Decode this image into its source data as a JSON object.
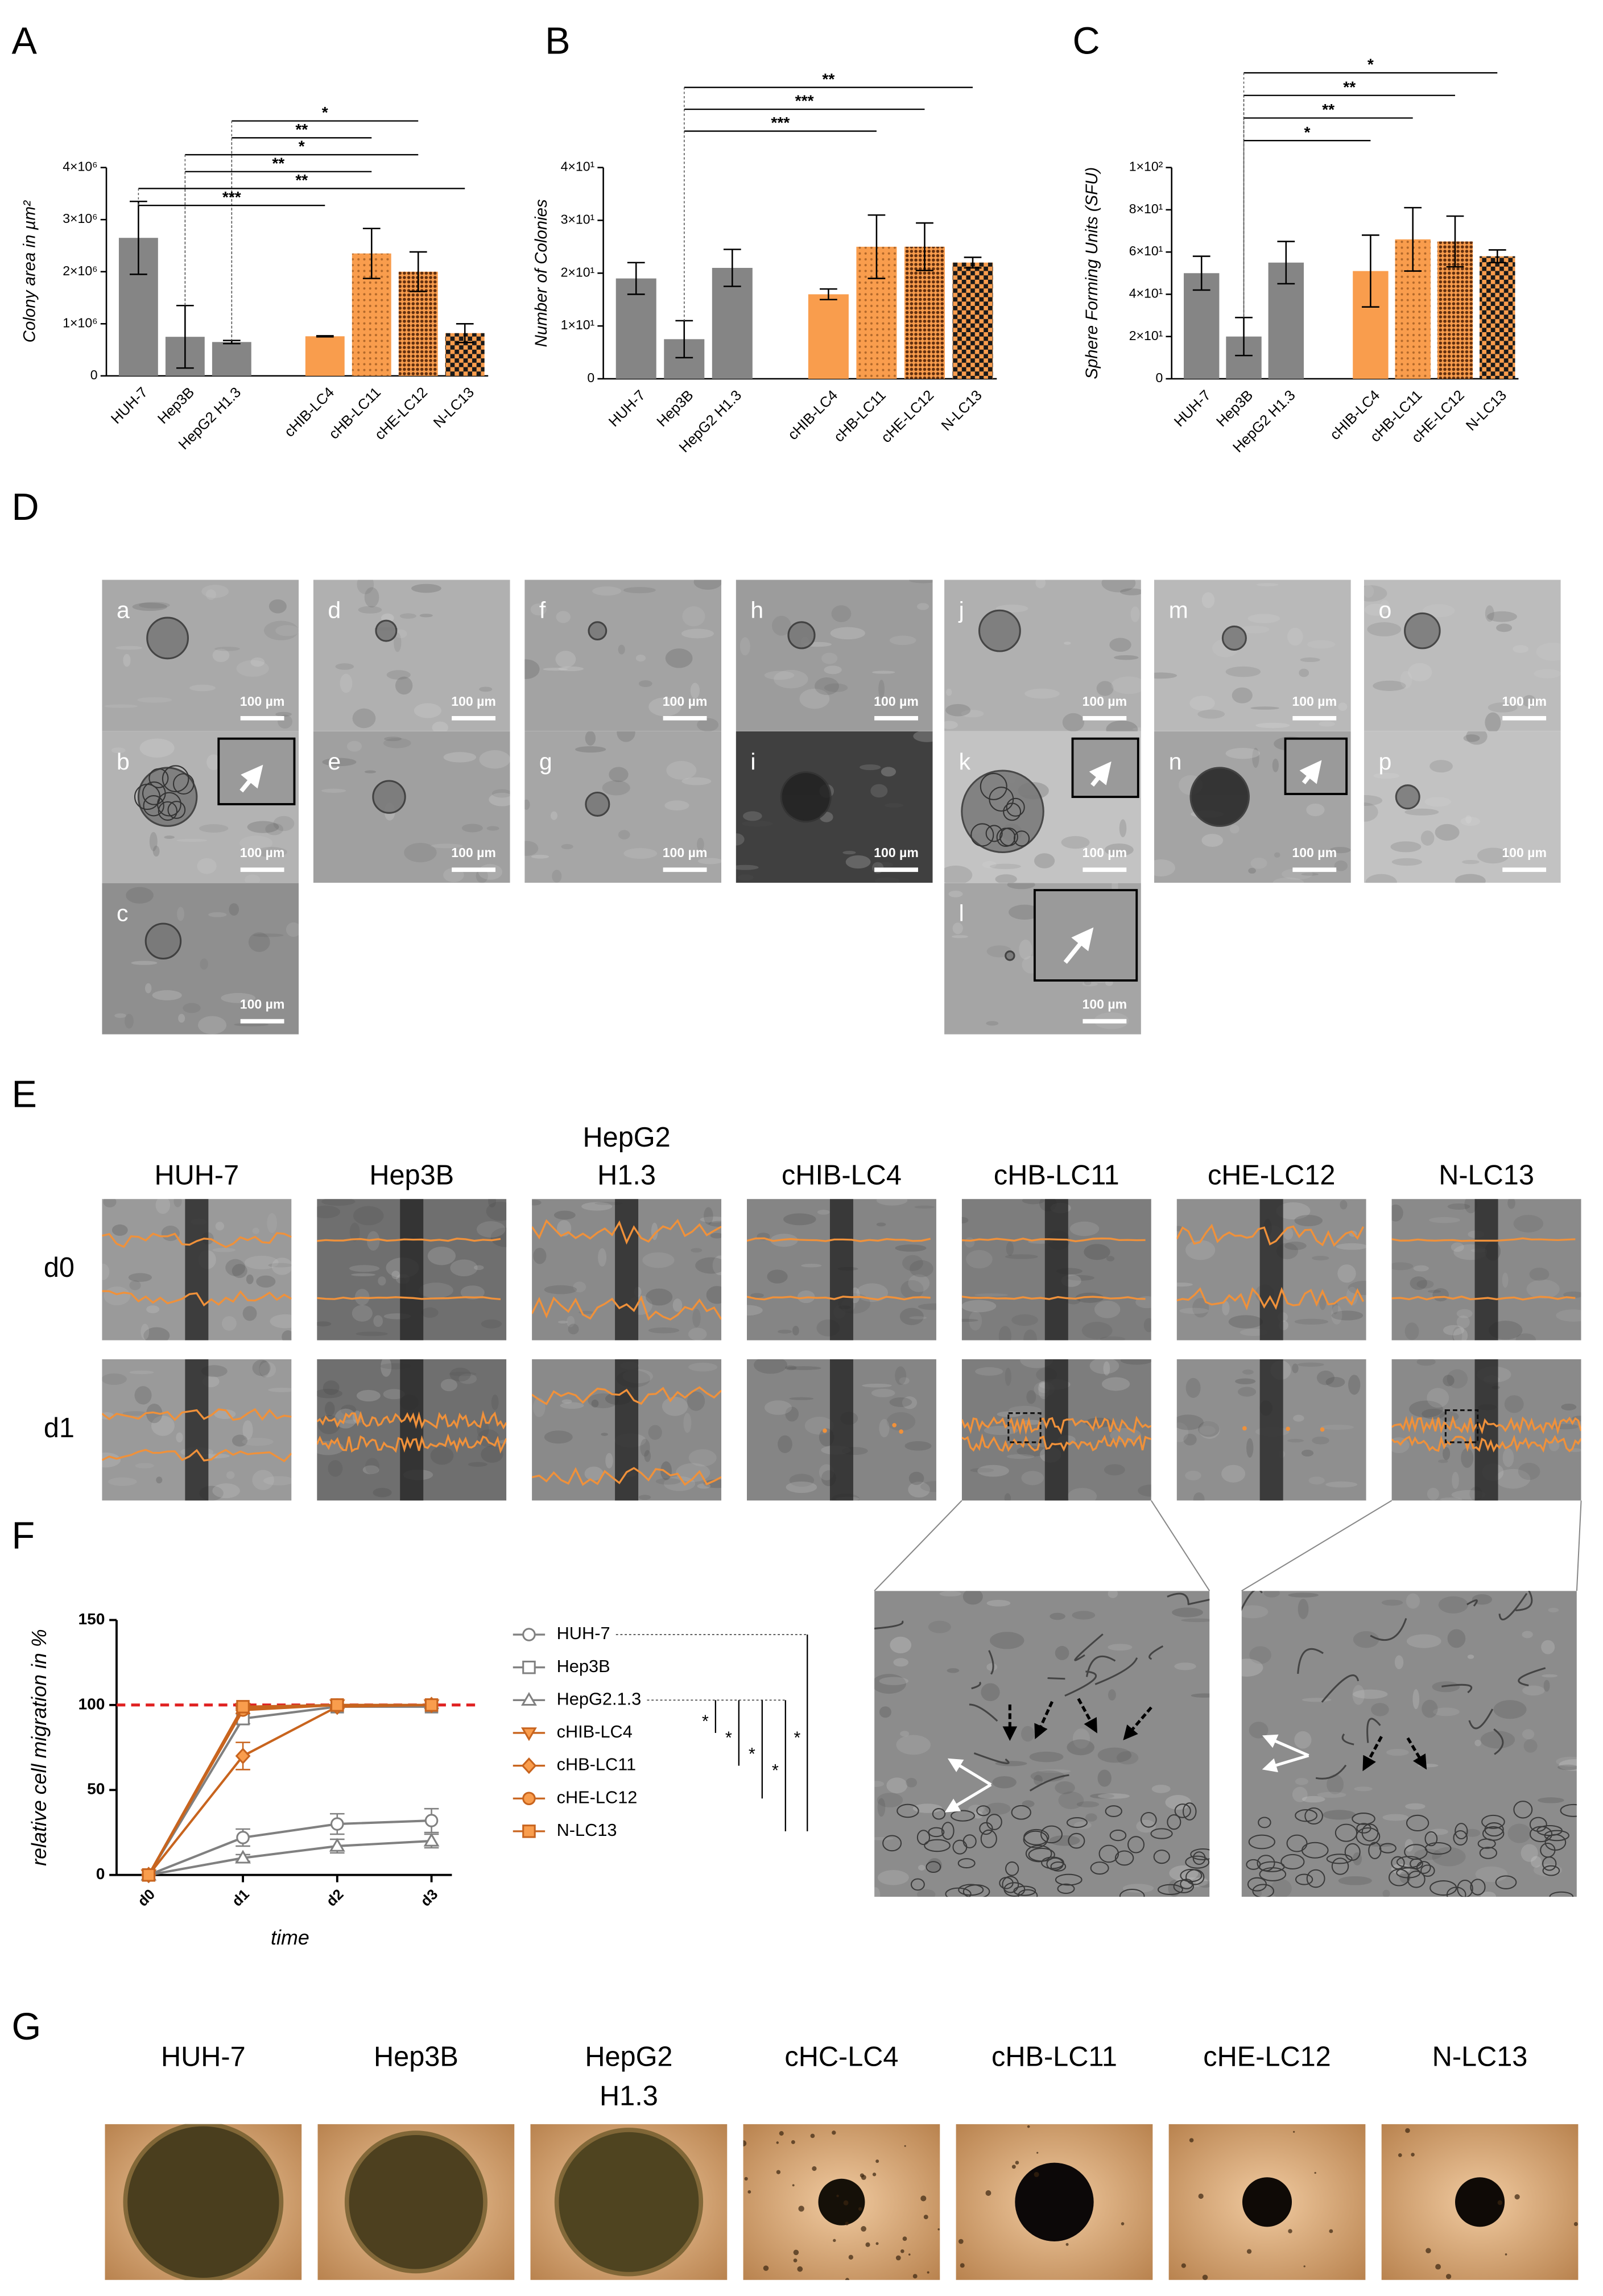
{
  "chart_data": [
    {
      "type": "bar",
      "label": "A",
      "y_label": "Colony area in µm²",
      "categories": [
        "HUH-7",
        "Hep3B",
        "HepG2 H1.3",
        null,
        "cHIB-LC4",
        "cHB-LC11",
        "cHE-LC12",
        "N-LC13"
      ],
      "values": [
        2650000,
        750000,
        650000,
        null,
        760000,
        2350000,
        2000000,
        820000
      ],
      "errors": [
        700000,
        600000,
        30000,
        null,
        10000,
        480000,
        380000,
        180000
      ],
      "colors": [
        "#858585",
        "#858585",
        "#858585",
        null,
        "#f99d4d",
        "#f99d4d",
        "#f99d4d",
        "#f99d4d"
      ],
      "patterns": [
        "solid",
        "solid",
        "solid",
        null,
        "solid",
        "dots",
        "dense-dots",
        "checker"
      ],
      "ylim": [
        0,
        4000000
      ],
      "yticks": [
        0,
        {
          "value": 1000000,
          "label": "1×10⁶"
        },
        {
          "value": 2000000,
          "label": "2×10⁶"
        },
        {
          "value": 3000000,
          "label": "3×10⁶"
        },
        {
          "value": 4000000,
          "label": "4×10⁶"
        }
      ],
      "significance": [
        {
          "from": "HepG2 H1.3",
          "to": "cHE-LC12",
          "label": "*"
        },
        {
          "from": "HepG2 H1.3",
          "to": "cHB-LC11",
          "label": "**"
        },
        {
          "from": "Hep3B",
          "to": "cHE-LC12",
          "label": "*"
        },
        {
          "from": "Hep3B",
          "to": "cHB-LC11",
          "label": "**"
        },
        {
          "from": "HUH-7",
          "to": "N-LC13",
          "label": "**"
        },
        {
          "from": "HUH-7",
          "to": "cHIB-LC4",
          "label": "***"
        }
      ]
    },
    {
      "type": "bar",
      "label": "B",
      "y_label": "Number of Colonies",
      "categories": [
        "HUH-7",
        "Hep3B",
        "HepG2 H1.3",
        null,
        "cHIB-LC4",
        "cHB-LC11",
        "cHE-LC12",
        "N-LC13"
      ],
      "values": [
        19,
        7.5,
        21,
        null,
        16,
        25,
        25,
        22
      ],
      "errors": [
        3,
        3.5,
        3.5,
        null,
        1,
        6,
        4.5,
        1
      ],
      "colors": [
        "#858585",
        "#858585",
        "#858585",
        null,
        "#f99d4d",
        "#f99d4d",
        "#f99d4d",
        "#f99d4d"
      ],
      "patterns": [
        "solid",
        "solid",
        "solid",
        null,
        "solid",
        "dots",
        "dense-dots",
        "checker"
      ],
      "ylim": [
        0,
        40
      ],
      "yticks": [
        0,
        {
          "value": 10,
          "label": "1×10¹"
        },
        {
          "value": 20,
          "label": "2×10¹"
        },
        {
          "value": 30,
          "label": "3×10¹"
        },
        {
          "value": 40,
          "label": "4×10¹"
        }
      ],
      "significance": [
        {
          "from": "Hep3B",
          "to": "N-LC13",
          "label": "**"
        },
        {
          "from": "Hep3B",
          "to": "cHE-LC12",
          "label": "***"
        },
        {
          "from": "Hep3B",
          "to": "cHB-LC11",
          "label": "***"
        }
      ]
    },
    {
      "type": "bar",
      "label": "C",
      "y_label": "Sphere Forming Units (SFU)",
      "categories": [
        "HUH-7",
        "Hep3B",
        "HepG2 H1.3",
        null,
        "cHIB-LC4",
        "cHB-LC11",
        "cHE-LC12",
        "N-LC13"
      ],
      "values": [
        50,
        20,
        55,
        null,
        51,
        66,
        65,
        58
      ],
      "errors": [
        8,
        9,
        10,
        null,
        17,
        15,
        12,
        3
      ],
      "colors": [
        "#858585",
        "#858585",
        "#858585",
        null,
        "#f99d4d",
        "#f99d4d",
        "#f99d4d",
        "#f99d4d"
      ],
      "patterns": [
        "solid",
        "solid",
        "solid",
        null,
        "solid",
        "dots",
        "dense-dots",
        "checker"
      ],
      "ylim": [
        0,
        100
      ],
      "yticks": [
        0,
        {
          "value": 20,
          "label": "2×10¹"
        },
        {
          "value": 40,
          "label": "4×10¹"
        },
        {
          "value": 60,
          "label": "6×10¹"
        },
        {
          "value": 80,
          "label": "8×10¹"
        },
        {
          "value": 100,
          "label": "1×10²"
        }
      ],
      "significance": [
        {
          "from": "Hep3B",
          "to": "N-LC13",
          "label": "*"
        },
        {
          "from": "Hep3B",
          "to": "cHE-LC12",
          "label": "**"
        },
        {
          "from": "Hep3B",
          "to": "cHB-LC11",
          "label": "**"
        },
        {
          "from": "Hep3B",
          "to": "cHIB-LC4",
          "label": "*"
        }
      ]
    },
    {
      "type": "line",
      "label": "F",
      "y_label": "relative cell migration in %",
      "x_label": "time",
      "categories": [
        "d0",
        "d1",
        "d2",
        "d3"
      ],
      "ylim": [
        0,
        150
      ],
      "yticks": [
        0,
        50,
        100,
        150
      ],
      "reference_line": 100,
      "reference_color": "#e02020",
      "series": [
        {
          "name": "HUH-7",
          "color": "#808080",
          "fill": "#ffffff",
          "marker": "circle",
          "values": [
            0,
            22,
            30,
            32
          ],
          "errors": [
            0,
            5,
            6,
            7
          ]
        },
        {
          "name": "Hep3B",
          "color": "#808080",
          "fill": "#ffffff",
          "marker": "square",
          "values": [
            0,
            92,
            99,
            99
          ],
          "errors": [
            0,
            3,
            1,
            1
          ]
        },
        {
          "name": "HepG2.1.3",
          "color": "#808080",
          "fill": "#ffffff",
          "marker": "triangle",
          "values": [
            0,
            10,
            17,
            20
          ],
          "errors": [
            0,
            2,
            4,
            4
          ]
        },
        {
          "name": "cHIB-LC4",
          "color": "#c8641e",
          "fill": "#f99d4d",
          "marker": "triangle-down",
          "values": [
            0,
            98,
            100,
            100
          ],
          "errors": [
            0,
            1,
            0,
            0
          ]
        },
        {
          "name": "cHB-LC11",
          "color": "#c8641e",
          "fill": "#f99d4d",
          "marker": "diamond",
          "values": [
            0,
            70,
            99,
            100
          ],
          "errors": [
            0,
            8,
            1,
            0
          ]
        },
        {
          "name": "cHE-LC12",
          "color": "#c8641e",
          "fill": "#f99d4d",
          "marker": "circle",
          "values": [
            0,
            97,
            100,
            100
          ],
          "errors": [
            0,
            2,
            0,
            0
          ]
        },
        {
          "name": "N-LC13",
          "color": "#c8641e",
          "fill": "#f99d4d",
          "marker": "square",
          "values": [
            0,
            99,
            100,
            100
          ],
          "errors": [
            0,
            1,
            0,
            0
          ]
        }
      ],
      "significance": [
        {
          "from": "HepG2.1.3",
          "to": "cHIB-LC4",
          "label": "*"
        },
        {
          "from": "HepG2.1.3",
          "to": "cHB-LC11",
          "label": "*"
        },
        {
          "from": "HepG2.1.3",
          "to": "cHE-LC12",
          "label": "*"
        },
        {
          "from": "HepG2.1.3",
          "to": "N-LC13",
          "label": "*"
        },
        {
          "from": "HUH-7",
          "to": "N-LC13",
          "label": "*"
        }
      ]
    }
  ],
  "figure": {
    "panel_d": {
      "label": "D",
      "images": [
        {
          "label": "a",
          "scale_bar": "100 µm"
        },
        {
          "label": "b",
          "scale_bar": "100 µm"
        },
        {
          "label": "c",
          "scale_bar": "100 µm"
        },
        {
          "label": "d",
          "scale_bar": "100 µm"
        },
        {
          "label": "e",
          "scale_bar": "100 µm"
        },
        {
          "label": "f",
          "scale_bar": "100 µm"
        },
        {
          "label": "g",
          "scale_bar": "100 µm"
        },
        {
          "label": "h",
          "scale_bar": "100 µm"
        },
        {
          "label": "i",
          "scale_bar": "100 µm"
        },
        {
          "label": "j",
          "scale_bar": "100 µm"
        },
        {
          "label": "k",
          "scale_bar": "100 µm"
        },
        {
          "label": "l",
          "scale_bar": "100 µm"
        },
        {
          "label": "m",
          "scale_bar": "100 µm"
        },
        {
          "label": "n",
          "scale_bar": "100 µm"
        },
        {
          "label": "o",
          "scale_bar": "100 µm"
        },
        {
          "label": "p",
          "scale_bar": "100 µm"
        }
      ]
    },
    "panel_e": {
      "label": "E",
      "columns": [
        [
          "HUH-7"
        ],
        [
          "Hep3B"
        ],
        [
          "HepG2",
          "H1.3"
        ],
        [
          "cHIB-LC4"
        ],
        [
          "cHB-LC11"
        ],
        [
          "cHE-LC12"
        ],
        [
          "N-LC13"
        ]
      ],
      "rows": [
        "d0",
        "d1"
      ]
    },
    "panel_g": {
      "label": "G",
      "columns": [
        [
          "HUH-7"
        ],
        [
          "Hep3B"
        ],
        [
          "HepG2",
          "H1.3"
        ],
        [
          "cHC-LC4"
        ],
        [
          "cHB-LC11"
        ],
        [
          "cHE-LC12"
        ],
        [
          "N-LC13"
        ]
      ]
    }
  }
}
